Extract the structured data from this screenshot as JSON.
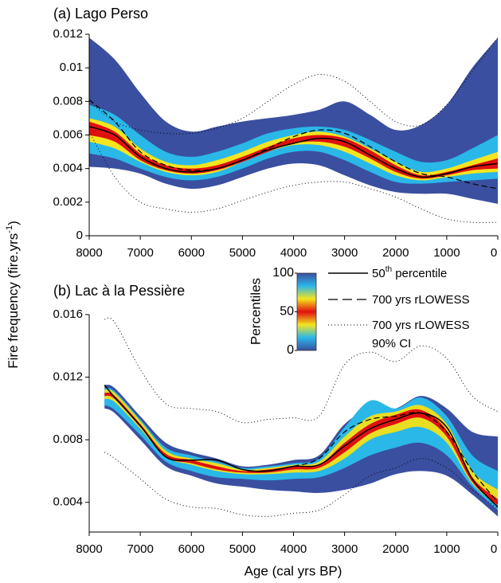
{
  "y_label": "Fire frequency (fire.yrs",
  "y_label_sup": "-1",
  "y_label_end": ")",
  "x_label": "Age (cal yrs BP)",
  "colorbar": {
    "label": "Percentiles",
    "lim": [
      0,
      100
    ],
    "ticks": [
      0,
      50,
      100
    ],
    "colors": [
      "#3a4fa0",
      "#2ab8e8",
      "#f5e41e",
      "#e01010",
      "#f5e41e",
      "#2ab8e8",
      "#3a4fa0"
    ]
  },
  "legend": {
    "median_num": "50",
    "median_sup": "th",
    "median_rest": " percentile",
    "lowess": "700 yrs rLOWESS",
    "ci": "700 yrs rLOWESS",
    "ci_2": "90% CI"
  },
  "chart_data": [
    {
      "type": "percentile_band",
      "title": "(a) Lago Perso",
      "x": [
        8000,
        7500,
        7000,
        6500,
        6000,
        5500,
        5000,
        4500,
        4000,
        3500,
        3000,
        2500,
        2000,
        1500,
        1000,
        500,
        0
      ],
      "xlim": [
        8000,
        0
      ],
      "xticks": [
        8000,
        7000,
        6000,
        5000,
        4000,
        3000,
        2000,
        1000,
        0
      ],
      "ylim": [
        0,
        0.012
      ],
      "yticks": [
        0,
        0.002,
        0.004,
        0.006,
        0.008,
        0.01,
        0.012
      ],
      "bands": [
        {
          "color": "#3a4fa0",
          "upper": [
            0.0118,
            0.0105,
            0.0085,
            0.0068,
            0.0062,
            0.0065,
            0.0068,
            0.007,
            0.0072,
            0.0075,
            0.008,
            0.0072,
            0.0063,
            0.0066,
            0.0078,
            0.01,
            0.0118
          ],
          "lower": [
            0.0041,
            0.004,
            0.0037,
            0.0031,
            0.0028,
            0.003,
            0.0035,
            0.004,
            0.0043,
            0.0042,
            0.0036,
            0.003,
            0.0026,
            0.0025,
            0.0025,
            0.0022,
            0.0019
          ]
        },
        {
          "color": "#2ab8e8",
          "upper": [
            0.0078,
            0.0072,
            0.006,
            0.005,
            0.0047,
            0.005,
            0.0055,
            0.0061,
            0.0064,
            0.0065,
            0.0063,
            0.0057,
            0.005,
            0.0044,
            0.0045,
            0.0052,
            0.006
          ],
          "lower": [
            0.0049,
            0.0046,
            0.004,
            0.0035,
            0.0033,
            0.0035,
            0.004,
            0.0046,
            0.005,
            0.005,
            0.0045,
            0.0038,
            0.0032,
            0.0031,
            0.0032,
            0.0033,
            0.0034
          ]
        },
        {
          "color": "#f5e41e",
          "upper": [
            0.007,
            0.0065,
            0.0052,
            0.0044,
            0.0042,
            0.0045,
            0.005,
            0.0056,
            0.006,
            0.0062,
            0.0059,
            0.0052,
            0.0044,
            0.0038,
            0.004,
            0.0045,
            0.005
          ],
          "lower": [
            0.0056,
            0.0052,
            0.0044,
            0.0038,
            0.0036,
            0.0038,
            0.0044,
            0.005,
            0.0054,
            0.0054,
            0.005,
            0.0043,
            0.0036,
            0.0033,
            0.0035,
            0.0037,
            0.0038
          ]
        },
        {
          "color": "#e01010",
          "upper": [
            0.0068,
            0.0062,
            0.0049,
            0.0042,
            0.004,
            0.0042,
            0.0047,
            0.0053,
            0.0058,
            0.006,
            0.0058,
            0.0051,
            0.0042,
            0.0036,
            0.0038,
            0.0042,
            0.0046
          ],
          "lower": [
            0.006,
            0.0056,
            0.0045,
            0.0039,
            0.0037,
            0.0039,
            0.0044,
            0.005,
            0.0055,
            0.0056,
            0.0053,
            0.0046,
            0.0038,
            0.0034,
            0.0036,
            0.0039,
            0.004
          ]
        }
      ],
      "median": [
        0.0065,
        0.006,
        0.0047,
        0.004,
        0.0038,
        0.004,
        0.0045,
        0.0051,
        0.0055,
        0.0058,
        0.0056,
        0.0048,
        0.004,
        0.0035,
        0.0037,
        0.0041,
        0.0043
      ],
      "lowess": [
        0.0081,
        0.0068,
        0.005,
        0.0042,
        0.0039,
        0.004,
        0.0045,
        0.0052,
        0.0059,
        0.0063,
        0.0061,
        0.0053,
        0.0044,
        0.0037,
        0.0035,
        0.0031,
        0.0028
      ],
      "ci_upper": [
        0.008,
        0.0068,
        0.0063,
        0.0061,
        0.0061,
        0.0064,
        0.007,
        0.008,
        0.009,
        0.0096,
        0.0092,
        0.008,
        0.0068,
        0.0066,
        0.0078,
        0.0098,
        0.0118
      ],
      "ci_lower": [
        0.0062,
        0.0035,
        0.002,
        0.0016,
        0.0014,
        0.0016,
        0.0021,
        0.0026,
        0.003,
        0.0032,
        0.0032,
        0.0028,
        0.0023,
        0.0016,
        0.001,
        0.0008,
        0.0008
      ]
    },
    {
      "type": "percentile_band",
      "title": "(b) Lac à la Pessière",
      "x": [
        7700,
        7500,
        7000,
        6500,
        6000,
        5500,
        5000,
        4500,
        4000,
        3500,
        3000,
        2500,
        2000,
        1500,
        1000,
        500,
        0
      ],
      "xlim": [
        8000,
        0
      ],
      "xticks": [
        8000,
        7000,
        6000,
        5000,
        4000,
        3000,
        2000,
        1000,
        0
      ],
      "ylim": [
        0.0021,
        0.016
      ],
      "yticks": [
        0.004,
        0.008,
        0.012,
        0.016
      ],
      "bands": [
        {
          "color": "#3a4fa0",
          "upper": [
            0.0115,
            0.0113,
            0.0095,
            0.0078,
            0.0072,
            0.0068,
            0.0063,
            0.0064,
            0.0067,
            0.007,
            0.009,
            0.01,
            0.01,
            0.0108,
            0.01,
            0.0085,
            0.0082
          ],
          "lower": [
            0.01,
            0.0097,
            0.008,
            0.0063,
            0.0057,
            0.0052,
            0.005,
            0.0048,
            0.0047,
            0.0046,
            0.0048,
            0.0052,
            0.0058,
            0.006,
            0.0057,
            0.0045,
            0.0031
          ]
        },
        {
          "color": "#2ab8e8",
          "upper": [
            0.0113,
            0.0111,
            0.0093,
            0.0075,
            0.007,
            0.0066,
            0.0062,
            0.0063,
            0.0065,
            0.0068,
            0.0088,
            0.0105,
            0.01,
            0.0107,
            0.0095,
            0.007,
            0.006
          ],
          "lower": [
            0.0102,
            0.0099,
            0.0083,
            0.0066,
            0.006,
            0.0056,
            0.0055,
            0.0054,
            0.0055,
            0.0056,
            0.0062,
            0.007,
            0.0075,
            0.0078,
            0.007,
            0.005,
            0.0035
          ]
        },
        {
          "color": "#e8de22",
          "upper": [
            0.0112,
            0.011,
            0.0092,
            0.0073,
            0.0068,
            0.0065,
            0.0061,
            0.0062,
            0.0064,
            0.0066,
            0.0082,
            0.0095,
            0.0098,
            0.0102,
            0.009,
            0.006,
            0.0048
          ],
          "lower": [
            0.0106,
            0.0104,
            0.0087,
            0.0069,
            0.0064,
            0.006,
            0.0058,
            0.0058,
            0.0059,
            0.006,
            0.0068,
            0.008,
            0.0085,
            0.0088,
            0.0078,
            0.0052,
            0.0038
          ]
        },
        {
          "color": "#e01010",
          "upper": [
            0.011,
            0.0108,
            0.009,
            0.0071,
            0.0067,
            0.0063,
            0.006,
            0.0061,
            0.0063,
            0.0064,
            0.0078,
            0.009,
            0.0096,
            0.0099,
            0.0086,
            0.0056,
            0.0042
          ],
          "lower": [
            0.0108,
            0.0106,
            0.0088,
            0.0069,
            0.0065,
            0.0061,
            0.0059,
            0.0059,
            0.0061,
            0.0062,
            0.0072,
            0.0084,
            0.009,
            0.0094,
            0.0082,
            0.0053,
            0.0038
          ]
        }
      ],
      "median": [
        0.0115,
        0.0107,
        0.0089,
        0.0069,
        0.0067,
        0.0067,
        0.0061,
        0.006,
        0.0063,
        0.0064,
        0.0076,
        0.0087,
        0.0093,
        0.0097,
        0.0088,
        0.0055,
        0.0037
      ],
      "lowess": [
        null,
        null,
        null,
        null,
        null,
        null,
        null,
        null,
        0.0063,
        0.0068,
        0.0085,
        0.0093,
        0.0095,
        0.0097,
        0.0085,
        0.006,
        0.004
      ],
      "ci_upper": [
        0.0157,
        0.0155,
        0.0125,
        0.0103,
        0.01,
        0.0098,
        0.0091,
        0.0093,
        0.0094,
        0.0095,
        0.0128,
        0.0136,
        0.013,
        0.014,
        0.0132,
        0.0108,
        0.0098
      ],
      "ci_lower": [
        0.0072,
        0.0068,
        0.0055,
        0.0042,
        0.0037,
        0.0036,
        0.0032,
        0.0031,
        0.0033,
        0.0035,
        0.0045,
        0.0057,
        0.0062,
        0.0068,
        0.0062,
        0.0048,
        0.0036
      ]
    }
  ]
}
